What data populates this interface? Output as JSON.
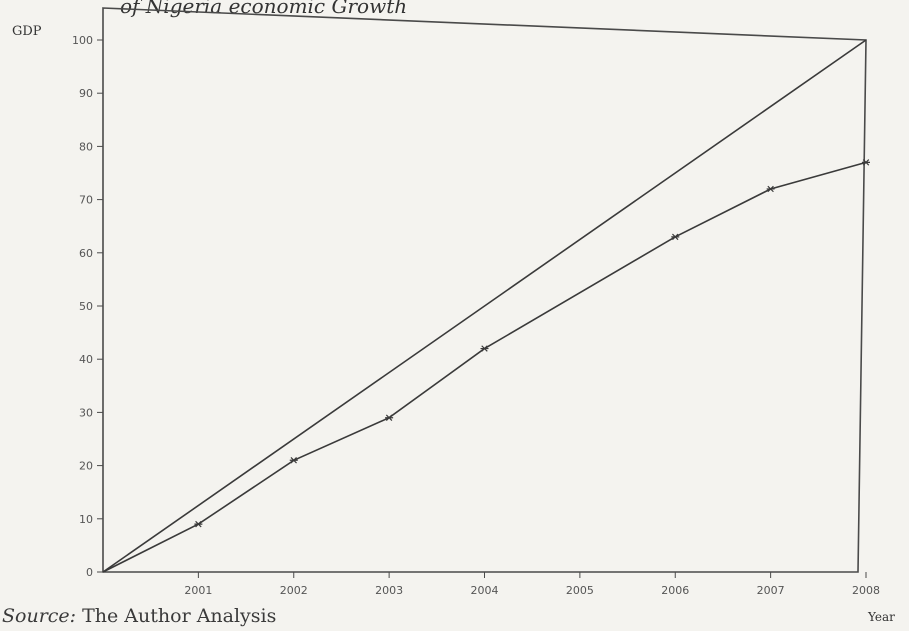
{
  "chart_data": {
    "type": "line",
    "title": "of Nigeria economic Growth",
    "ylabel": "GDP",
    "xlabel": "Year",
    "source_label": "Source:",
    "source_text": "The Author Analysis",
    "ylim": [
      0,
      100
    ],
    "yticks": [
      0,
      10,
      20,
      30,
      40,
      50,
      60,
      70,
      80,
      90,
      100
    ],
    "x_tick_labels": [
      "2001",
      "2002",
      "2003",
      "2004",
      "2005",
      "2006",
      "2007",
      "2008"
    ],
    "series": [
      {
        "x": [
          2000,
          2008
        ],
        "values": [
          0,
          100
        ],
        "marker": "none"
      },
      {
        "x": [
          2000,
          2001,
          2002,
          2003,
          2004,
          2006,
          2007,
          2008
        ],
        "values": [
          0,
          9,
          21,
          29,
          42,
          63,
          72,
          77
        ],
        "marker": "star"
      }
    ],
    "colors": {
      "line": "#3a3a3a",
      "frame": "#4a4a4a"
    }
  }
}
